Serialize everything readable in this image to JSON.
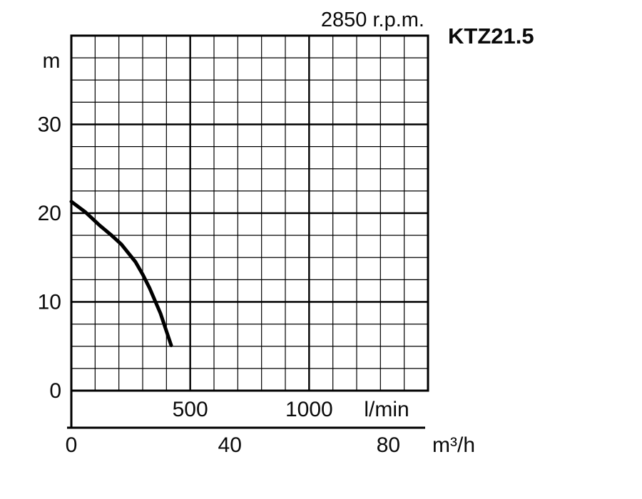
{
  "page": {
    "background": "#ffffff"
  },
  "chart_data": {
    "type": "line",
    "title": "2850 r.p.m.",
    "model": "KTZ21.5",
    "grid": true,
    "legend": "none",
    "colors": {
      "axis": "#000000",
      "grid": "#000000",
      "curve": "#000000"
    },
    "y_axis": {
      "unit": "m",
      "min": 0,
      "max": 40,
      "major_step": 10,
      "minor_step": 2.5,
      "ticks": [
        {
          "value": 30,
          "label": "30"
        },
        {
          "value": 20,
          "label": "20"
        },
        {
          "value": 10,
          "label": "10"
        },
        {
          "value": 0,
          "label": "0"
        }
      ]
    },
    "x_axis_primary": {
      "unit": "l/min",
      "min": 0,
      "max": 1500,
      "major_step": 500,
      "minor_step": 100,
      "ticks": [
        {
          "value": 500,
          "label": "500"
        },
        {
          "value": 1000,
          "label": "1000"
        }
      ]
    },
    "x_axis_secondary": {
      "unit": "m³/h",
      "min": 0,
      "max": 90,
      "ticks": [
        {
          "value": 0,
          "label": "0"
        },
        {
          "value": 40,
          "label": "40"
        },
        {
          "value": 80,
          "label": "80"
        }
      ]
    },
    "series": [
      {
        "name": "head-flow-curve",
        "x_unit": "l/min",
        "y_unit": "m",
        "points": [
          [
            0,
            21.3
          ],
          [
            60,
            20.1
          ],
          [
            120,
            18.6
          ],
          [
            165,
            17.6
          ],
          [
            210,
            16.5
          ],
          [
            270,
            14.5
          ],
          [
            300,
            13.1
          ],
          [
            330,
            11.5
          ],
          [
            375,
            8.7
          ],
          [
            420,
            5.1
          ]
        ]
      }
    ]
  }
}
